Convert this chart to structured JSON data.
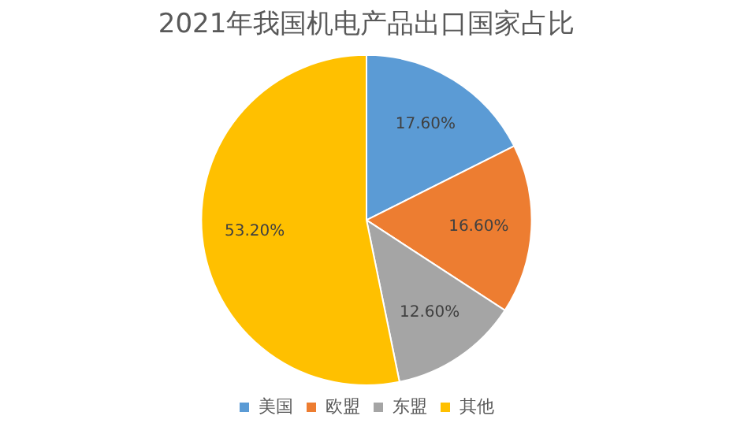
{
  "chart_data": {
    "type": "pie",
    "title": "2021年我国机电产品出口国家占比",
    "categories": [
      "美国",
      "欧盟",
      "东盟",
      "其他"
    ],
    "values": [
      17.6,
      16.6,
      12.6,
      53.2
    ],
    "colors": [
      "#5b9bd5",
      "#ed7d31",
      "#a5a5a5",
      "#ffc000"
    ],
    "value_labels": [
      "17.60%",
      "16.60%",
      "12.60%",
      "53.20%"
    ],
    "legend": "bottom"
  }
}
